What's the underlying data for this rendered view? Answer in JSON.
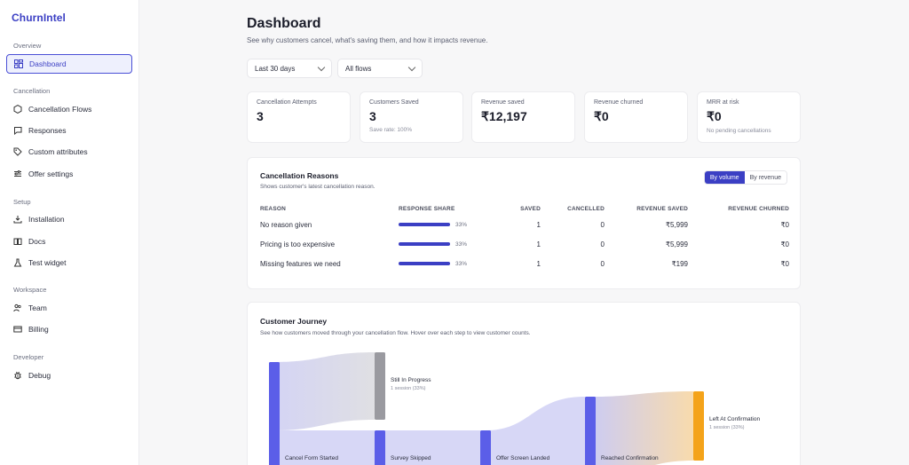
{
  "brand": "ChurnIntel",
  "sidebar": {
    "sections": [
      {
        "label": "Overview"
      },
      {
        "label": "Cancellation"
      },
      {
        "label": "Setup"
      },
      {
        "label": "Workspace"
      },
      {
        "label": "Developer"
      }
    ],
    "items": [
      {
        "label": "Dashboard",
        "icon": "grid-icon"
      },
      {
        "label": "Cancellation Flows",
        "icon": "hexagon-icon"
      },
      {
        "label": "Responses",
        "icon": "message-icon"
      },
      {
        "label": "Custom attributes",
        "icon": "tag-icon"
      },
      {
        "label": "Offer settings",
        "icon": "sliders-icon"
      },
      {
        "label": "Installation",
        "icon": "download-icon"
      },
      {
        "label": "Docs",
        "icon": "book-icon"
      },
      {
        "label": "Test widget",
        "icon": "flask-icon"
      },
      {
        "label": "Team",
        "icon": "users-icon"
      },
      {
        "label": "Billing",
        "icon": "card-icon"
      },
      {
        "label": "Debug",
        "icon": "bug-icon"
      }
    ]
  },
  "header": {
    "title": "Dashboard",
    "subtitle": "See why customers cancel, what's saving them, and how it impacts revenue."
  },
  "filters": {
    "period": "Last 30 days",
    "flow": "All flows"
  },
  "kpis": [
    {
      "label": "Cancellation Attempts",
      "value": "3",
      "note": ""
    },
    {
      "label": "Customers Saved",
      "value": "3",
      "note": "Save rate: 100%"
    },
    {
      "label": "Revenue saved",
      "value": "₹12,197",
      "note": ""
    },
    {
      "label": "Revenue churned",
      "value": "₹0",
      "note": ""
    },
    {
      "label": "MRR at risk",
      "value": "₹0",
      "note": "No pending cancellations"
    }
  ],
  "reasons_card": {
    "title": "Cancellation Reasons",
    "subtitle": "Shows customer's latest cancellation reason.",
    "toggle_on": "By volume",
    "toggle_off": "By revenue",
    "columns": [
      "REASON",
      "RESPONSE SHARE",
      "SAVED",
      "CANCELLED",
      "REVENUE SAVED",
      "REVENUE CHURNED"
    ],
    "rows": [
      {
        "reason": "No reason given",
        "share": "33%",
        "saved": "1",
        "cancelled": "0",
        "rev_saved": "₹5,999",
        "rev_churned": "₹0"
      },
      {
        "reason": "Pricing is too expensive",
        "share": "33%",
        "saved": "1",
        "cancelled": "0",
        "rev_saved": "₹5,999",
        "rev_churned": "₹0"
      },
      {
        "reason": "Missing features we need",
        "share": "33%",
        "saved": "1",
        "cancelled": "0",
        "rev_saved": "₹199",
        "rev_churned": "₹0"
      }
    ]
  },
  "journey_card": {
    "title": "Customer Journey",
    "subtitle": "See how customers moved through your cancellation flow. Hover over each step to view customer counts.",
    "nodes": [
      {
        "label": "Cancel Form Started",
        "sub": ""
      },
      {
        "label": "Still In Progress",
        "sub": "1 session (33%)"
      },
      {
        "label": "Survey Skipped",
        "sub": ""
      },
      {
        "label": "Offer Screen Landed",
        "sub": ""
      },
      {
        "label": "Reached Confirmation",
        "sub": ""
      },
      {
        "label": "Left At Confirmation",
        "sub": "1 session (33%)"
      }
    ]
  },
  "colors": {
    "accent": "#3b3fc4",
    "node": "#5b5ee8",
    "gray_node": "#9a9aa0",
    "orange_node": "#f4a31a",
    "danger": "#e5484d"
  }
}
